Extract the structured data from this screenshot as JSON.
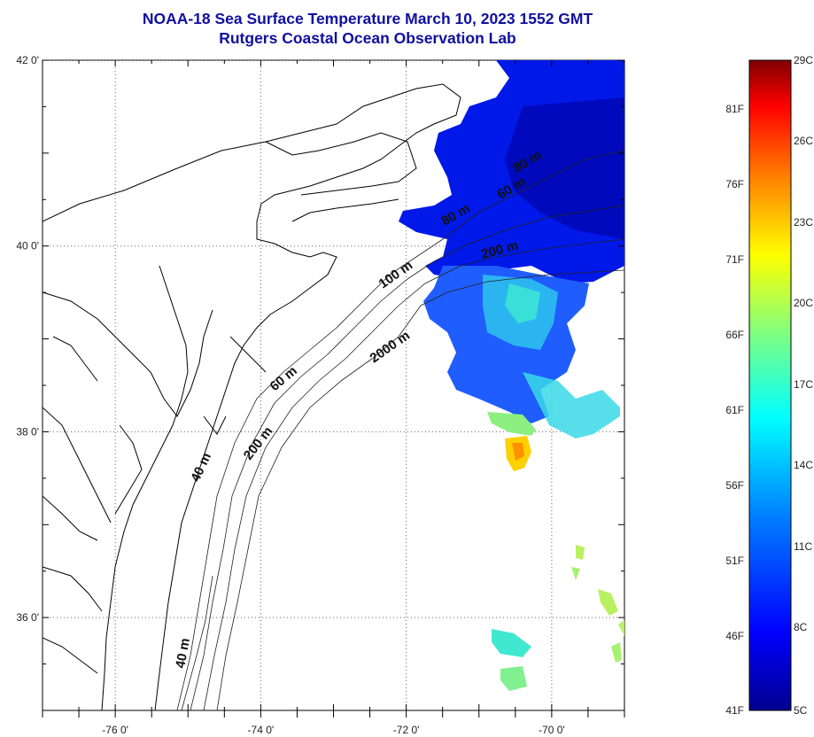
{
  "title": {
    "line1": "NOAA-18 Sea Surface Temperature March 10, 2023 1552 GMT",
    "line2": "Rutgers Coastal Ocean Observation Lab"
  },
  "map": {
    "lon_range": [
      -77,
      -69
    ],
    "lat_range": [
      35,
      42
    ],
    "lat_ticks": [
      {
        "value": 42,
        "label": "42 0'"
      },
      {
        "value": 40,
        "label": "40 0'"
      },
      {
        "value": 38,
        "label": "38 0'"
      },
      {
        "value": 36,
        "label": "36 0'"
      }
    ],
    "lon_ticks": [
      {
        "value": -76,
        "label": "-76 0'"
      },
      {
        "value": -74,
        "label": "-74 0'"
      },
      {
        "value": -72,
        "label": "-72 0'"
      },
      {
        "value": -70,
        "label": "-70 0'"
      }
    ],
    "isobath_labels": [
      "80 m",
      "60 m",
      "80 m",
      "200 m",
      "100 m",
      "2000 m",
      "60 m",
      "200 m",
      "40 m",
      "40 m"
    ]
  },
  "colorbar": {
    "fahrenheit": [
      "81F",
      "76F",
      "71F",
      "66F",
      "61F",
      "56F",
      "51F",
      "46F",
      "41F"
    ],
    "celsius": [
      "29C",
      "26C",
      "23C",
      "20C",
      "17C",
      "14C",
      "11C",
      "8C",
      "5C"
    ],
    "colors": [
      "#00008f",
      "#0000ff",
      "#0080ff",
      "#00ffff",
      "#80ff80",
      "#ffff00",
      "#ff8000",
      "#ff0000",
      "#800000"
    ]
  }
}
